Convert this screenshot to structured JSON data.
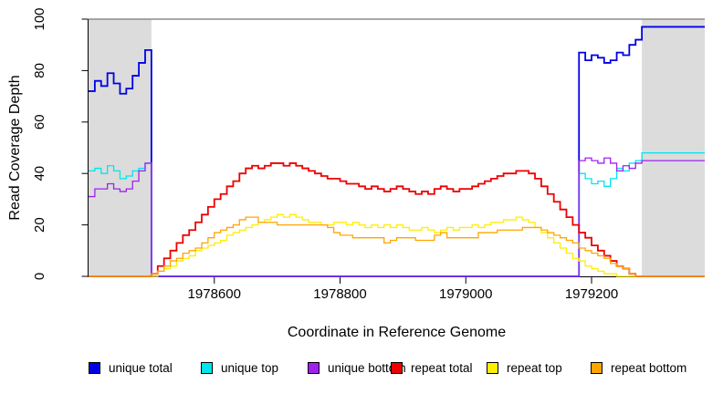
{
  "y_axis": {
    "label": "Read Coverage Depth",
    "ticks": [
      0,
      20,
      40,
      60,
      80,
      100
    ]
  },
  "x_axis": {
    "label": "Coordinate in Reference Genome",
    "ticks": [
      1978600,
      1978800,
      1979000,
      1979200
    ]
  },
  "legend": {
    "items": [
      {
        "label": "unique total",
        "color": "#0000E6"
      },
      {
        "label": "unique top",
        "color": "#00E5EE"
      },
      {
        "label": "unique bottom",
        "color": "#A020F0"
      },
      {
        "label": "repeat total",
        "color": "#EE0000"
      },
      {
        "label": "repeat top",
        "color": "#FFEE00"
      },
      {
        "label": "repeat bottom",
        "color": "#FFA500"
      }
    ]
  },
  "chart_data": {
    "type": "line",
    "title": "",
    "xlabel": "Coordinate in Reference Genome",
    "ylabel": "Read Coverage Depth",
    "xlim": [
      1978400,
      1979380
    ],
    "ylim": [
      0,
      100
    ],
    "x_start": 1978400,
    "x_step": 10,
    "grid": false,
    "legend_position": "bottom",
    "shade_color": "#DCDCDC",
    "top_border_color": "#8C8C8C",
    "shaded_regions": [
      [
        1978400,
        1978500
      ],
      [
        1979280,
        1979380
      ]
    ],
    "series": [
      {
        "name": "unique total",
        "color": "#0000E6",
        "width": 1.8,
        "values": [
          72,
          76,
          74,
          79,
          75,
          71,
          73,
          78,
          83,
          88,
          0,
          0,
          0,
          0,
          0,
          0,
          0,
          0,
          0,
          0,
          0,
          0,
          0,
          0,
          0,
          0,
          0,
          0,
          0,
          0,
          0,
          0,
          0,
          0,
          0,
          0,
          0,
          0,
          0,
          0,
          0,
          0,
          0,
          0,
          0,
          0,
          0,
          0,
          0,
          0,
          0,
          0,
          0,
          0,
          0,
          0,
          0,
          0,
          0,
          0,
          0,
          0,
          0,
          0,
          0,
          0,
          0,
          0,
          0,
          0,
          0,
          0,
          0,
          0,
          0,
          0,
          0,
          0,
          87,
          84,
          86,
          85,
          83,
          84,
          87,
          86,
          90,
          92,
          97
        ]
      },
      {
        "name": "unique top",
        "color": "#00E5EE",
        "width": 1.3,
        "values": [
          41,
          42,
          40,
          43,
          41,
          38,
          39,
          41,
          42,
          44,
          0,
          0,
          0,
          0,
          0,
          0,
          0,
          0,
          0,
          0,
          0,
          0,
          0,
          0,
          0,
          0,
          0,
          0,
          0,
          0,
          0,
          0,
          0,
          0,
          0,
          0,
          0,
          0,
          0,
          0,
          0,
          0,
          0,
          0,
          0,
          0,
          0,
          0,
          0,
          0,
          0,
          0,
          0,
          0,
          0,
          0,
          0,
          0,
          0,
          0,
          0,
          0,
          0,
          0,
          0,
          0,
          0,
          0,
          0,
          0,
          0,
          0,
          0,
          0,
          0,
          0,
          0,
          0,
          40,
          38,
          36,
          37,
          35,
          38,
          42,
          41,
          44,
          45,
          48
        ]
      },
      {
        "name": "unique bottom",
        "color": "#A020F0",
        "width": 1.3,
        "values": [
          31,
          34,
          34,
          36,
          34,
          33,
          34,
          37,
          41,
          44,
          0,
          0,
          0,
          0,
          0,
          0,
          0,
          0,
          0,
          0,
          0,
          0,
          0,
          0,
          0,
          0,
          0,
          0,
          0,
          0,
          0,
          0,
          0,
          0,
          0,
          0,
          0,
          0,
          0,
          0,
          0,
          0,
          0,
          0,
          0,
          0,
          0,
          0,
          0,
          0,
          0,
          0,
          0,
          0,
          0,
          0,
          0,
          0,
          0,
          0,
          0,
          0,
          0,
          0,
          0,
          0,
          0,
          0,
          0,
          0,
          0,
          0,
          0,
          0,
          0,
          0,
          0,
          0,
          45,
          46,
          45,
          44,
          46,
          44,
          41,
          43,
          42,
          44,
          45
        ]
      },
      {
        "name": "repeat total",
        "color": "#EE0000",
        "width": 1.8,
        "values": [
          0,
          0,
          0,
          0,
          0,
          0,
          0,
          0,
          0,
          0,
          1,
          4,
          7,
          10,
          13,
          16,
          18,
          21,
          24,
          27,
          30,
          32,
          35,
          37,
          40,
          42,
          43,
          42,
          43,
          44,
          44,
          43,
          44,
          43,
          42,
          41,
          40,
          39,
          38,
          38,
          37,
          36,
          36,
          35,
          34,
          35,
          34,
          33,
          34,
          35,
          34,
          33,
          32,
          33,
          32,
          34,
          35,
          34,
          33,
          34,
          34,
          35,
          36,
          37,
          38,
          39,
          40,
          40,
          41,
          41,
          40,
          38,
          35,
          32,
          29,
          26,
          23,
          20,
          17,
          15,
          12,
          10,
          8,
          6,
          4,
          3,
          1,
          0,
          0,
          0,
          0,
          0,
          0,
          0,
          0,
          0,
          0,
          0,
          0
        ]
      },
      {
        "name": "repeat top",
        "color": "#FFEE00",
        "width": 1.3,
        "values": [
          0,
          0,
          0,
          0,
          0,
          0,
          0,
          0,
          0,
          0,
          0,
          2,
          3,
          4,
          6,
          7,
          8,
          10,
          11,
          12,
          13,
          14,
          16,
          17,
          18,
          19,
          20,
          21,
          22,
          23,
          24,
          23,
          24,
          23,
          22,
          21,
          21,
          20,
          20,
          21,
          21,
          20,
          21,
          20,
          19,
          20,
          19,
          20,
          19,
          20,
          19,
          18,
          18,
          19,
          18,
          17,
          18,
          19,
          18,
          19,
          19,
          20,
          19,
          20,
          21,
          21,
          22,
          22,
          23,
          22,
          21,
          19,
          17,
          15,
          13,
          11,
          9,
          7,
          6,
          4,
          3,
          2,
          1,
          1,
          0,
          0,
          0,
          0,
          0,
          0,
          0,
          0,
          0,
          0,
          0,
          0,
          0,
          0,
          0
        ]
      },
      {
        "name": "repeat bottom",
        "color": "#FFA500",
        "width": 1.3,
        "values": [
          0,
          0,
          0,
          0,
          0,
          0,
          0,
          0,
          0,
          0,
          1,
          2,
          4,
          6,
          7,
          9,
          10,
          11,
          13,
          15,
          17,
          18,
          19,
          20,
          22,
          23,
          23,
          21,
          21,
          21,
          20,
          20,
          20,
          20,
          20,
          20,
          20,
          20,
          19,
          17,
          16,
          16,
          15,
          15,
          15,
          15,
          15,
          13,
          14,
          15,
          15,
          15,
          14,
          14,
          14,
          16,
          17,
          15,
          15,
          15,
          15,
          15,
          17,
          17,
          17,
          18,
          18,
          18,
          18,
          19,
          19,
          19,
          18,
          17,
          16,
          15,
          14,
          13,
          11,
          10,
          9,
          8,
          7,
          5,
          4,
          3,
          1,
          0,
          0,
          0,
          0,
          0,
          0,
          0,
          0,
          0,
          0,
          0,
          0
        ]
      }
    ]
  }
}
